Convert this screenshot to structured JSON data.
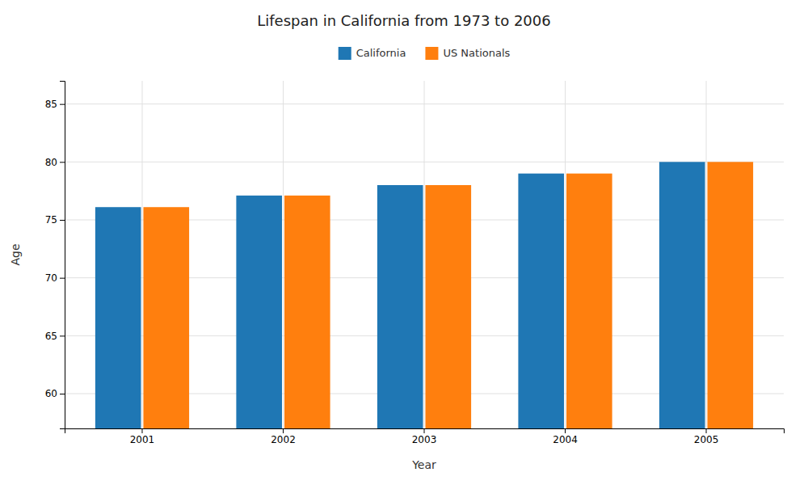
{
  "chart_data": {
    "type": "bar",
    "title": "Lifespan in California from 1973 to 2006",
    "xlabel": "Year",
    "ylabel": "Age",
    "categories": [
      "2001",
      "2002",
      "2003",
      "2004",
      "2005"
    ],
    "series": [
      {
        "name": "California",
        "values": [
          76.1,
          77.1,
          78.0,
          79.0,
          80.0
        ]
      },
      {
        "name": "US Nationals",
        "values": [
          76.1,
          77.1,
          78.0,
          79.0,
          80.0
        ]
      }
    ],
    "ylim": [
      57,
      87
    ],
    "yticks": [
      60,
      65,
      70,
      75,
      80,
      85
    ],
    "grid": true,
    "legend": "top"
  }
}
